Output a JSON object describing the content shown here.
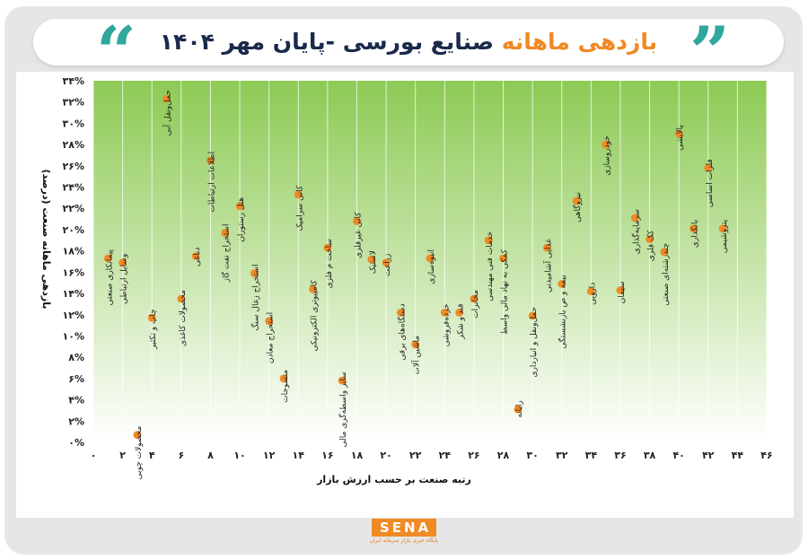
{
  "header": {
    "title_highlight": "بازدهی ماهانه",
    "title_rest": " صنایع بورسی -پایان مهر ۱۴۰۴",
    "quote_open": "“",
    "quote_close": "”"
  },
  "logo": {
    "name": "SENA",
    "tagline": "پایگاه خبری بازار سرمایه ایران"
  },
  "colors": {
    "accent_orange": "#f08a24",
    "teal": "#2fa79c",
    "navy": "#1a2a4a",
    "plot_green_top": "#8dca54",
    "plot_green_bottom": "#ffffff"
  },
  "chart_data": {
    "type": "scatter",
    "title": "بازدهی ماهانه صنایع بورسی -پایان مهر ۱۴۰۴",
    "xlabel": "رتبه صنعت بر حسب ارزش بازار",
    "ylabel": "بازدهی ماهانه صنعت (درصد)",
    "xlim": [
      0,
      46
    ],
    "ylim": [
      0,
      34
    ],
    "x_ticks": [
      0,
      2,
      4,
      6,
      8,
      10,
      12,
      14,
      16,
      18,
      20,
      22,
      24,
      26,
      28,
      30,
      32,
      34,
      36,
      38,
      40,
      42,
      44,
      46
    ],
    "x_tick_labels": [
      "۰",
      "۲",
      "۴",
      "۶",
      "۸",
      "۱۰",
      "۱۲",
      "۱۴",
      "۱۶",
      "۱۸",
      "۲۰",
      "۲۲",
      "۲۴",
      "۲۶",
      "۲۸",
      "۳۰",
      "۳۲",
      "۳۴",
      "۳۶",
      "۳۸",
      "۴۰",
      "۴۲",
      "۴۴",
      "۴۶"
    ],
    "y_ticks": [
      0,
      2,
      4,
      6,
      8,
      10,
      12,
      14,
      16,
      18,
      20,
      22,
      24,
      26,
      28,
      30,
      32,
      34
    ],
    "y_tick_labels": [
      "۰%",
      "۲%",
      "۴%",
      "۶%",
      "۸%",
      "۱۰%",
      "۱۲%",
      "۱۴%",
      "۱۶%",
      "۱۸%",
      "۲۰%",
      "۲۲%",
      "۲۴%",
      "۲۶%",
      "۲۸%",
      "۳۰%",
      "۳۲%",
      "۳۴%"
    ],
    "grid": "vertical",
    "point_color": "#f08a24",
    "points": [
      {
        "x": 1,
        "y": 17.3,
        "label": "پیمانکاری صنعتی"
      },
      {
        "x": 2,
        "y": 16.9,
        "label": "وسایل ارتباطی"
      },
      {
        "x": 3,
        "y": 0.7,
        "label": "محصولات چوبی"
      },
      {
        "x": 4,
        "y": 11.7,
        "label": "چاپ و تکثیر"
      },
      {
        "x": 5,
        "y": 32.3,
        "label": "حمل‌ونقل آبی"
      },
      {
        "x": 6,
        "y": 13.5,
        "label": "محصولات کاغذی"
      },
      {
        "x": 7,
        "y": 17.5,
        "label": "دباغی"
      },
      {
        "x": 8,
        "y": 26.5,
        "label": "اطلاعات ارتباطات"
      },
      {
        "x": 9,
        "y": 19.7,
        "label": "استخراج نفت گاز"
      },
      {
        "x": 10,
        "y": 22.2,
        "label": "هتل رستوران"
      },
      {
        "x": 11,
        "y": 15.9,
        "label": "استخراج زغال سنگ"
      },
      {
        "x": 12,
        "y": 11.4,
        "label": "استخراج معادن"
      },
      {
        "x": 13,
        "y": 6.0,
        "label": "منسوجات"
      },
      {
        "x": 14,
        "y": 23.3,
        "label": "کانی سرامیک"
      },
      {
        "x": 15,
        "y": 14.4,
        "label": "کامپیوتری الکترونیکی"
      },
      {
        "x": 16,
        "y": 18.3,
        "label": "ساخت م فلزی"
      },
      {
        "x": 17,
        "y": 5.8,
        "label": "سایر واسطه‌گری مالی"
      },
      {
        "x": 18,
        "y": 20.8,
        "label": "کانی غیرفلزی"
      },
      {
        "x": 19,
        "y": 17.2,
        "label": "لاستیک"
      },
      {
        "x": 20,
        "y": 16.9,
        "label": "زراعت"
      },
      {
        "x": 21,
        "y": 12.2,
        "label": "دستگاه‌های برقی"
      },
      {
        "x": 22,
        "y": 9.2,
        "label": "ماشین آلات"
      },
      {
        "x": 23,
        "y": 17.3,
        "label": "انبوه‌سازی"
      },
      {
        "x": 24,
        "y": 12.2,
        "label": "خرده‌فروشی"
      },
      {
        "x": 25,
        "y": 12.2,
        "label": "قند و شکر"
      },
      {
        "x": 26,
        "y": 13.5,
        "label": "مخابرات"
      },
      {
        "x": 27,
        "y": 19.0,
        "label": "خدمات فنی مهندسی"
      },
      {
        "x": 28,
        "y": 17.3,
        "label": "کمکی به نهاد مالی واسط"
      },
      {
        "x": 29,
        "y": 3.1,
        "label": "رایانه"
      },
      {
        "x": 30,
        "y": 11.9,
        "label": "حمل‌ونقل و انبارداری"
      },
      {
        "x": 31,
        "y": 18.3,
        "label": "غذایی آشامیدنی"
      },
      {
        "x": 32,
        "y": 14.9,
        "label": "بیمه و ص بازنشستگی"
      },
      {
        "x": 33,
        "y": 22.7,
        "label": "نیروگاهی"
      },
      {
        "x": 34,
        "y": 14.2,
        "label": "دارویی"
      },
      {
        "x": 35,
        "y": 28.0,
        "label": "خودروسازی"
      },
      {
        "x": 36,
        "y": 14.3,
        "label": "سیمان"
      },
      {
        "x": 37,
        "y": 21.1,
        "label": "سرمایه‌گذاری"
      },
      {
        "x": 38,
        "y": 19.1,
        "label": "کک فلزی"
      },
      {
        "x": 39,
        "y": 17.9,
        "label": "چندرشته‌ای صنعتی"
      },
      {
        "x": 40,
        "y": 29.0,
        "label": "پالایشی"
      },
      {
        "x": 41,
        "y": 20.1,
        "label": "بانکداری"
      },
      {
        "x": 42,
        "y": 25.8,
        "label": "فلزات اساسی"
      },
      {
        "x": 43,
        "y": 20.1,
        "label": "پتروشیمی"
      }
    ]
  }
}
